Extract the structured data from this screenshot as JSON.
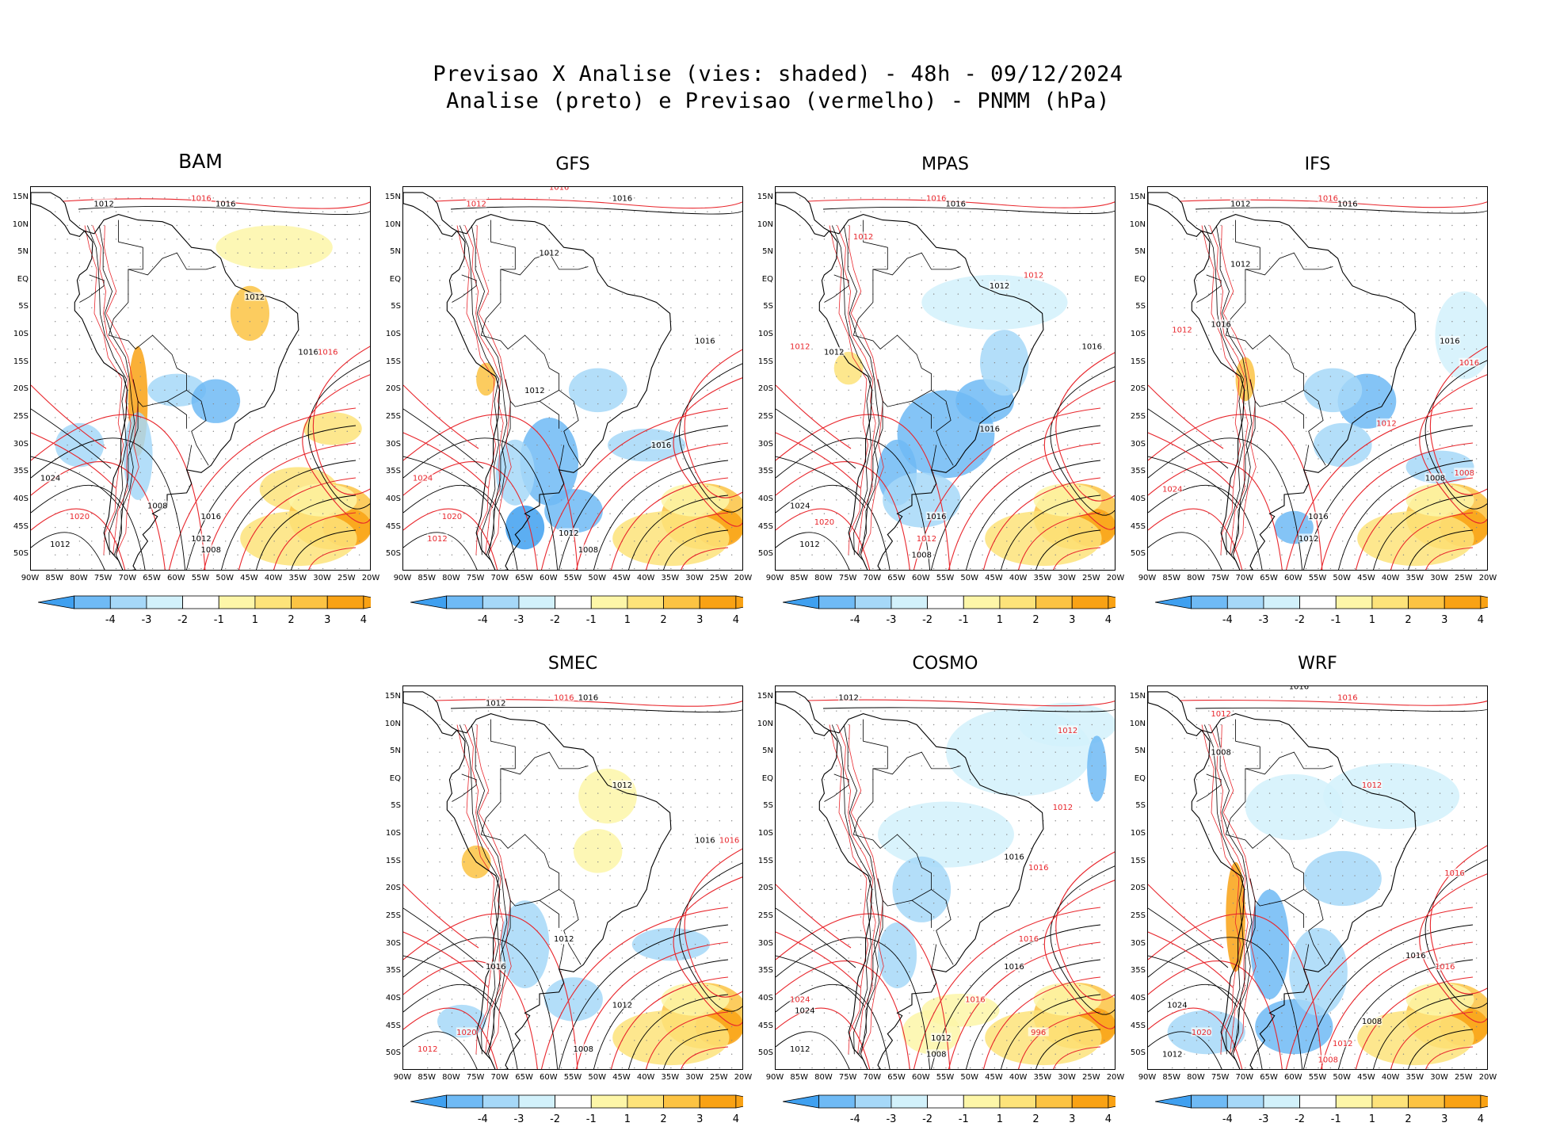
{
  "titles": {
    "line1": "Previsao X Analise (vies: shaded) - 48h - 09/12/2024",
    "line2": "Analise (preto) e Previsao (vermelho) - PNMM (hPa)"
  },
  "axes": {
    "lat_labels": [
      "15N",
      "10N",
      "5N",
      "EQ",
      "5S",
      "10S",
      "15S",
      "20S",
      "25S",
      "30S",
      "35S",
      "40S",
      "45S",
      "50S"
    ],
    "lon_labels": [
      "90W",
      "85W",
      "80W",
      "75W",
      "70W",
      "65W",
      "60W",
      "55W",
      "50W",
      "45W",
      "40W",
      "35W",
      "30W",
      "25W",
      "20W"
    ],
    "lat_range": [
      17,
      -53
    ],
    "lon_range": [
      -90,
      -20
    ]
  },
  "colorbar": {
    "labels": [
      "-4",
      "-3",
      "-2",
      "-1",
      "1",
      "2",
      "3",
      "4"
    ],
    "colors": [
      "#3fa0f0",
      "#6fbaf5",
      "#a6d8f8",
      "#d2f1fb",
      "#ffffff",
      "#fdf6a8",
      "#fde37a",
      "#fcc343",
      "#f9a214",
      "#f9a214"
    ]
  },
  "line_colors": {
    "analysis": "#000000",
    "forecast": "#e8262c"
  },
  "panels": [
    {
      "name": "BAM",
      "contours": [
        {
          "label": "1012",
          "lon": -75,
          "lat": 14,
          "src": "a"
        },
        {
          "label": "1016",
          "lon": -55,
          "lat": 15,
          "src": "f"
        },
        {
          "label": "1016",
          "lon": -50,
          "lat": 14,
          "src": "a"
        },
        {
          "label": "1012",
          "lon": -44,
          "lat": -3,
          "src": "a"
        },
        {
          "label": "1016",
          "lon": -33,
          "lat": -13,
          "src": "a"
        },
        {
          "label": "1016",
          "lon": -29,
          "lat": -13,
          "src": "f"
        },
        {
          "label": "1024",
          "lon": -86,
          "lat": -36,
          "src": "a"
        },
        {
          "label": "1020",
          "lon": -80,
          "lat": -43,
          "src": "f"
        },
        {
          "label": "1012",
          "lon": -84,
          "lat": -48,
          "src": "a"
        },
        {
          "label": "1008",
          "lon": -64,
          "lat": -41,
          "src": "a"
        },
        {
          "label": "1016",
          "lon": -53,
          "lat": -43,
          "src": "a"
        },
        {
          "label": "1012",
          "lon": -55,
          "lat": -47,
          "src": "a"
        },
        {
          "label": "1008",
          "lon": -53,
          "lat": -49,
          "src": "a"
        }
      ]
    },
    {
      "name": "GFS",
      "contours": [
        {
          "label": "1012",
          "lon": -75,
          "lat": 14,
          "src": "f"
        },
        {
          "label": "1016",
          "lon": -58,
          "lat": 17,
          "src": "f"
        },
        {
          "label": "1016",
          "lon": -45,
          "lat": 15,
          "src": "a"
        },
        {
          "label": "1012",
          "lon": -60,
          "lat": 5,
          "src": "a"
        },
        {
          "label": "1016",
          "lon": -28,
          "lat": -11,
          "src": "a"
        },
        {
          "label": "1012",
          "lon": -63,
          "lat": -20,
          "src": "a"
        },
        {
          "label": "1016",
          "lon": -37,
          "lat": -30,
          "src": "a"
        },
        {
          "label": "1024",
          "lon": -86,
          "lat": -36,
          "src": "f"
        },
        {
          "label": "1020",
          "lon": -80,
          "lat": -43,
          "src": "f"
        },
        {
          "label": "1012",
          "lon": -83,
          "lat": -47,
          "src": "f"
        },
        {
          "label": "1012",
          "lon": -56,
          "lat": -46,
          "src": "a"
        },
        {
          "label": "1008",
          "lon": -52,
          "lat": -49,
          "src": "a"
        }
      ]
    },
    {
      "name": "MPAS",
      "contours": [
        {
          "label": "1016",
          "lon": -57,
          "lat": 15,
          "src": "f"
        },
        {
          "label": "1016",
          "lon": -53,
          "lat": 14,
          "src": "a"
        },
        {
          "label": "1012",
          "lon": -72,
          "lat": 8,
          "src": "f"
        },
        {
          "label": "1012",
          "lon": -44,
          "lat": -1,
          "src": "a"
        },
        {
          "label": "1012",
          "lon": -37,
          "lat": 1,
          "src": "f"
        },
        {
          "label": "1012",
          "lon": -85,
          "lat": -12,
          "src": "f"
        },
        {
          "label": "1012",
          "lon": -78,
          "lat": -13,
          "src": "a"
        },
        {
          "label": "1016",
          "lon": -25,
          "lat": -12,
          "src": "a"
        },
        {
          "label": "1016",
          "lon": -46,
          "lat": -27,
          "src": "a"
        },
        {
          "label": "1024",
          "lon": -85,
          "lat": -41,
          "src": "a"
        },
        {
          "label": "1020",
          "lon": -80,
          "lat": -44,
          "src": "f"
        },
        {
          "label": "1012",
          "lon": -83,
          "lat": -48,
          "src": "a"
        },
        {
          "label": "1016",
          "lon": -57,
          "lat": -43,
          "src": "a"
        },
        {
          "label": "1012",
          "lon": -59,
          "lat": -47,
          "src": "f"
        },
        {
          "label": "1008",
          "lon": -60,
          "lat": -50,
          "src": "a"
        }
      ]
    },
    {
      "name": "IFS",
      "contours": [
        {
          "label": "1012",
          "lon": -71,
          "lat": 14,
          "src": "a"
        },
        {
          "label": "1016",
          "lon": -53,
          "lat": 15,
          "src": "f"
        },
        {
          "label": "1016",
          "lon": -49,
          "lat": 14,
          "src": "a"
        },
        {
          "label": "1012",
          "lon": -71,
          "lat": 3,
          "src": "a"
        },
        {
          "label": "1012",
          "lon": -83,
          "lat": -9,
          "src": "f"
        },
        {
          "label": "1016",
          "lon": -75,
          "lat": -8,
          "src": "a"
        },
        {
          "label": "1016",
          "lon": -28,
          "lat": -11,
          "src": "a"
        },
        {
          "label": "1016",
          "lon": -24,
          "lat": -15,
          "src": "f"
        },
        {
          "label": "1012",
          "lon": -41,
          "lat": -26,
          "src": "f"
        },
        {
          "label": "1024",
          "lon": -85,
          "lat": -38,
          "src": "f"
        },
        {
          "label": "1008",
          "lon": -25,
          "lat": -35,
          "src": "f"
        },
        {
          "label": "1008",
          "lon": -31,
          "lat": -36,
          "src": "a"
        },
        {
          "label": "1016",
          "lon": -55,
          "lat": -43,
          "src": "a"
        },
        {
          "label": "1012",
          "lon": -57,
          "lat": -47,
          "src": "a"
        }
      ]
    },
    {
      "name": "SMEC",
      "contours": [
        {
          "label": "1012",
          "lon": -71,
          "lat": 14,
          "src": "a"
        },
        {
          "label": "1016",
          "lon": -57,
          "lat": 15,
          "src": "f"
        },
        {
          "label": "1016",
          "lon": -52,
          "lat": 15,
          "src": "a"
        },
        {
          "label": "1012",
          "lon": -45,
          "lat": -1,
          "src": "a"
        },
        {
          "label": "1016",
          "lon": -28,
          "lat": -11,
          "src": "a"
        },
        {
          "label": "1016",
          "lon": -23,
          "lat": -11,
          "src": "f"
        },
        {
          "label": "1012",
          "lon": -57,
          "lat": -29,
          "src": "a"
        },
        {
          "label": "1016",
          "lon": -71,
          "lat": -34,
          "src": "a"
        },
        {
          "label": "1012",
          "lon": -45,
          "lat": -41,
          "src": "a"
        },
        {
          "label": "1020",
          "lon": -77,
          "lat": -46,
          "src": "f"
        },
        {
          "label": "1012",
          "lon": -85,
          "lat": -49,
          "src": "f"
        },
        {
          "label": "1008",
          "lon": -53,
          "lat": -49,
          "src": "a"
        }
      ]
    },
    {
      "name": "COSMO",
      "contours": [
        {
          "label": "1012",
          "lon": -75,
          "lat": 15,
          "src": "a"
        },
        {
          "label": "1012",
          "lon": -30,
          "lat": 9,
          "src": "f"
        },
        {
          "label": "1012",
          "lon": -31,
          "lat": -5,
          "src": "f"
        },
        {
          "label": "1016",
          "lon": -41,
          "lat": -14,
          "src": "a"
        },
        {
          "label": "1016",
          "lon": -36,
          "lat": -16,
          "src": "f"
        },
        {
          "label": "1016",
          "lon": -38,
          "lat": -29,
          "src": "f"
        },
        {
          "label": "1016",
          "lon": -41,
          "lat": -34,
          "src": "a"
        },
        {
          "label": "1024",
          "lon": -85,
          "lat": -40,
          "src": "f"
        },
        {
          "label": "1024",
          "lon": -84,
          "lat": -42,
          "src": "a"
        },
        {
          "label": "1016",
          "lon": -49,
          "lat": -40,
          "src": "f"
        },
        {
          "label": "996",
          "lon": -36,
          "lat": -46,
          "src": "f"
        },
        {
          "label": "1012",
          "lon": -56,
          "lat": -47,
          "src": "a"
        },
        {
          "label": "1008",
          "lon": -57,
          "lat": -50,
          "src": "a"
        },
        {
          "label": "1012",
          "lon": -85,
          "lat": -49,
          "src": "a"
        }
      ]
    },
    {
      "name": "WRF",
      "contours": [
        {
          "label": "1016",
          "lon": -59,
          "lat": 17,
          "src": "a"
        },
        {
          "label": "1016",
          "lon": -49,
          "lat": 15,
          "src": "f"
        },
        {
          "label": "1012",
          "lon": -75,
          "lat": 12,
          "src": "f"
        },
        {
          "label": "1008",
          "lon": -75,
          "lat": 5,
          "src": "a"
        },
        {
          "label": "1012",
          "lon": -44,
          "lat": -1,
          "src": "f"
        },
        {
          "label": "1016",
          "lon": -27,
          "lat": -17,
          "src": "f"
        },
        {
          "label": "1016",
          "lon": -35,
          "lat": -32,
          "src": "a"
        },
        {
          "label": "1016",
          "lon": -29,
          "lat": -34,
          "src": "f"
        },
        {
          "label": "1024",
          "lon": -84,
          "lat": -41,
          "src": "a"
        },
        {
          "label": "1020",
          "lon": -79,
          "lat": -46,
          "src": "f"
        },
        {
          "label": "1008",
          "lon": -44,
          "lat": -44,
          "src": "a"
        },
        {
          "label": "1012",
          "lon": -50,
          "lat": -48,
          "src": "f"
        },
        {
          "label": "1008",
          "lon": -53,
          "lat": -51,
          "src": "f"
        },
        {
          "label": "1012",
          "lon": -85,
          "lat": -50,
          "src": "a"
        }
      ]
    }
  ]
}
